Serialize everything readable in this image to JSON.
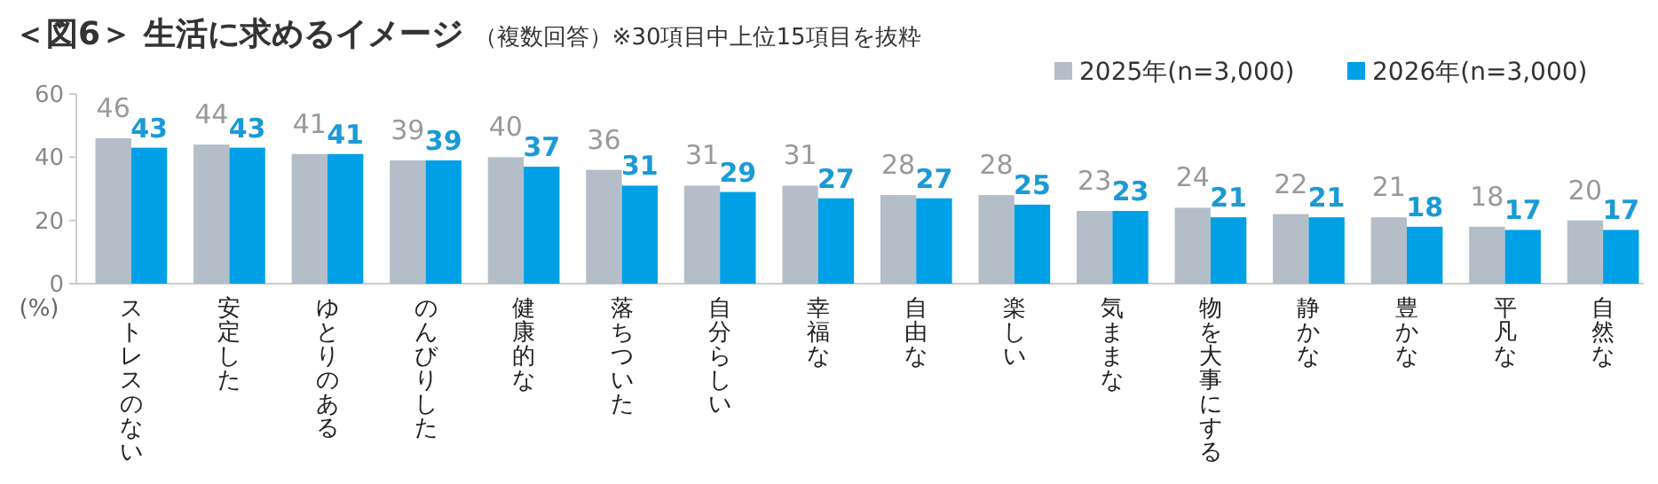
{
  "chart_data": {
    "type": "bar",
    "title": "＜図6＞ 生活に求めるイメージ",
    "subtitle": "（複数回答）※30項目中上位15項目を抜粋",
    "ylabel": "(%)",
    "categories": [
      "ストレスのない",
      "安定した",
      "ゆとりのある",
      "のんびりした",
      "健康的な",
      "落ちついた",
      "自分らしい",
      "幸福な",
      "自由な",
      "楽しい",
      "気ままな",
      "物を大事にする",
      "静かな",
      "豊かな",
      "平凡な",
      "自然な"
    ],
    "series": [
      {
        "name": "2025年(n=3,000)",
        "color": "#b4bec8",
        "values": [
          46,
          44,
          41,
          39,
          40,
          36,
          31,
          31,
          28,
          28,
          23,
          24,
          22,
          21,
          18,
          20
        ]
      },
      {
        "name": "2026年(n=3,000)",
        "color": "#00a0e6",
        "values": [
          43,
          43,
          41,
          39,
          37,
          31,
          29,
          27,
          27,
          25,
          23,
          21,
          21,
          18,
          17,
          17
        ]
      }
    ],
    "ylim": [
      0,
      60
    ],
    "yticks": [
      0,
      20,
      40,
      60
    ],
    "grid": false,
    "legend": "top right",
    "data_labels": true
  }
}
